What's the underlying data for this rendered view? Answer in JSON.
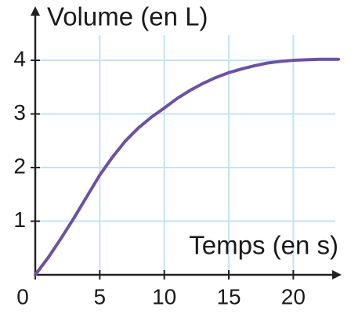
{
  "chart_data": {
    "type": "line",
    "y_label": "Volume (en L)",
    "x_label": "Temps (en s)",
    "x": [
      0,
      1,
      2,
      3,
      4,
      5,
      6,
      7,
      8,
      9,
      10,
      11,
      12,
      13,
      14,
      15,
      16,
      17,
      18,
      19,
      20,
      21,
      22,
      23.5
    ],
    "series": [
      {
        "color": "#6b52a3",
        "values": [
          0,
          0.32,
          0.68,
          1.06,
          1.46,
          1.86,
          2.2,
          2.5,
          2.74,
          2.94,
          3.11,
          3.29,
          3.44,
          3.57,
          3.68,
          3.77,
          3.84,
          3.9,
          3.95,
          3.98,
          4.0,
          4.01,
          4.02,
          4.02
        ]
      }
    ],
    "xlim": [
      0,
      23.5
    ],
    "ylim": [
      0,
      4.95
    ],
    "xticks": [
      0,
      5,
      10,
      15,
      20
    ],
    "yticks": [
      1,
      2,
      3,
      4
    ],
    "grid": true,
    "grid_color": "#c4e3f2"
  }
}
